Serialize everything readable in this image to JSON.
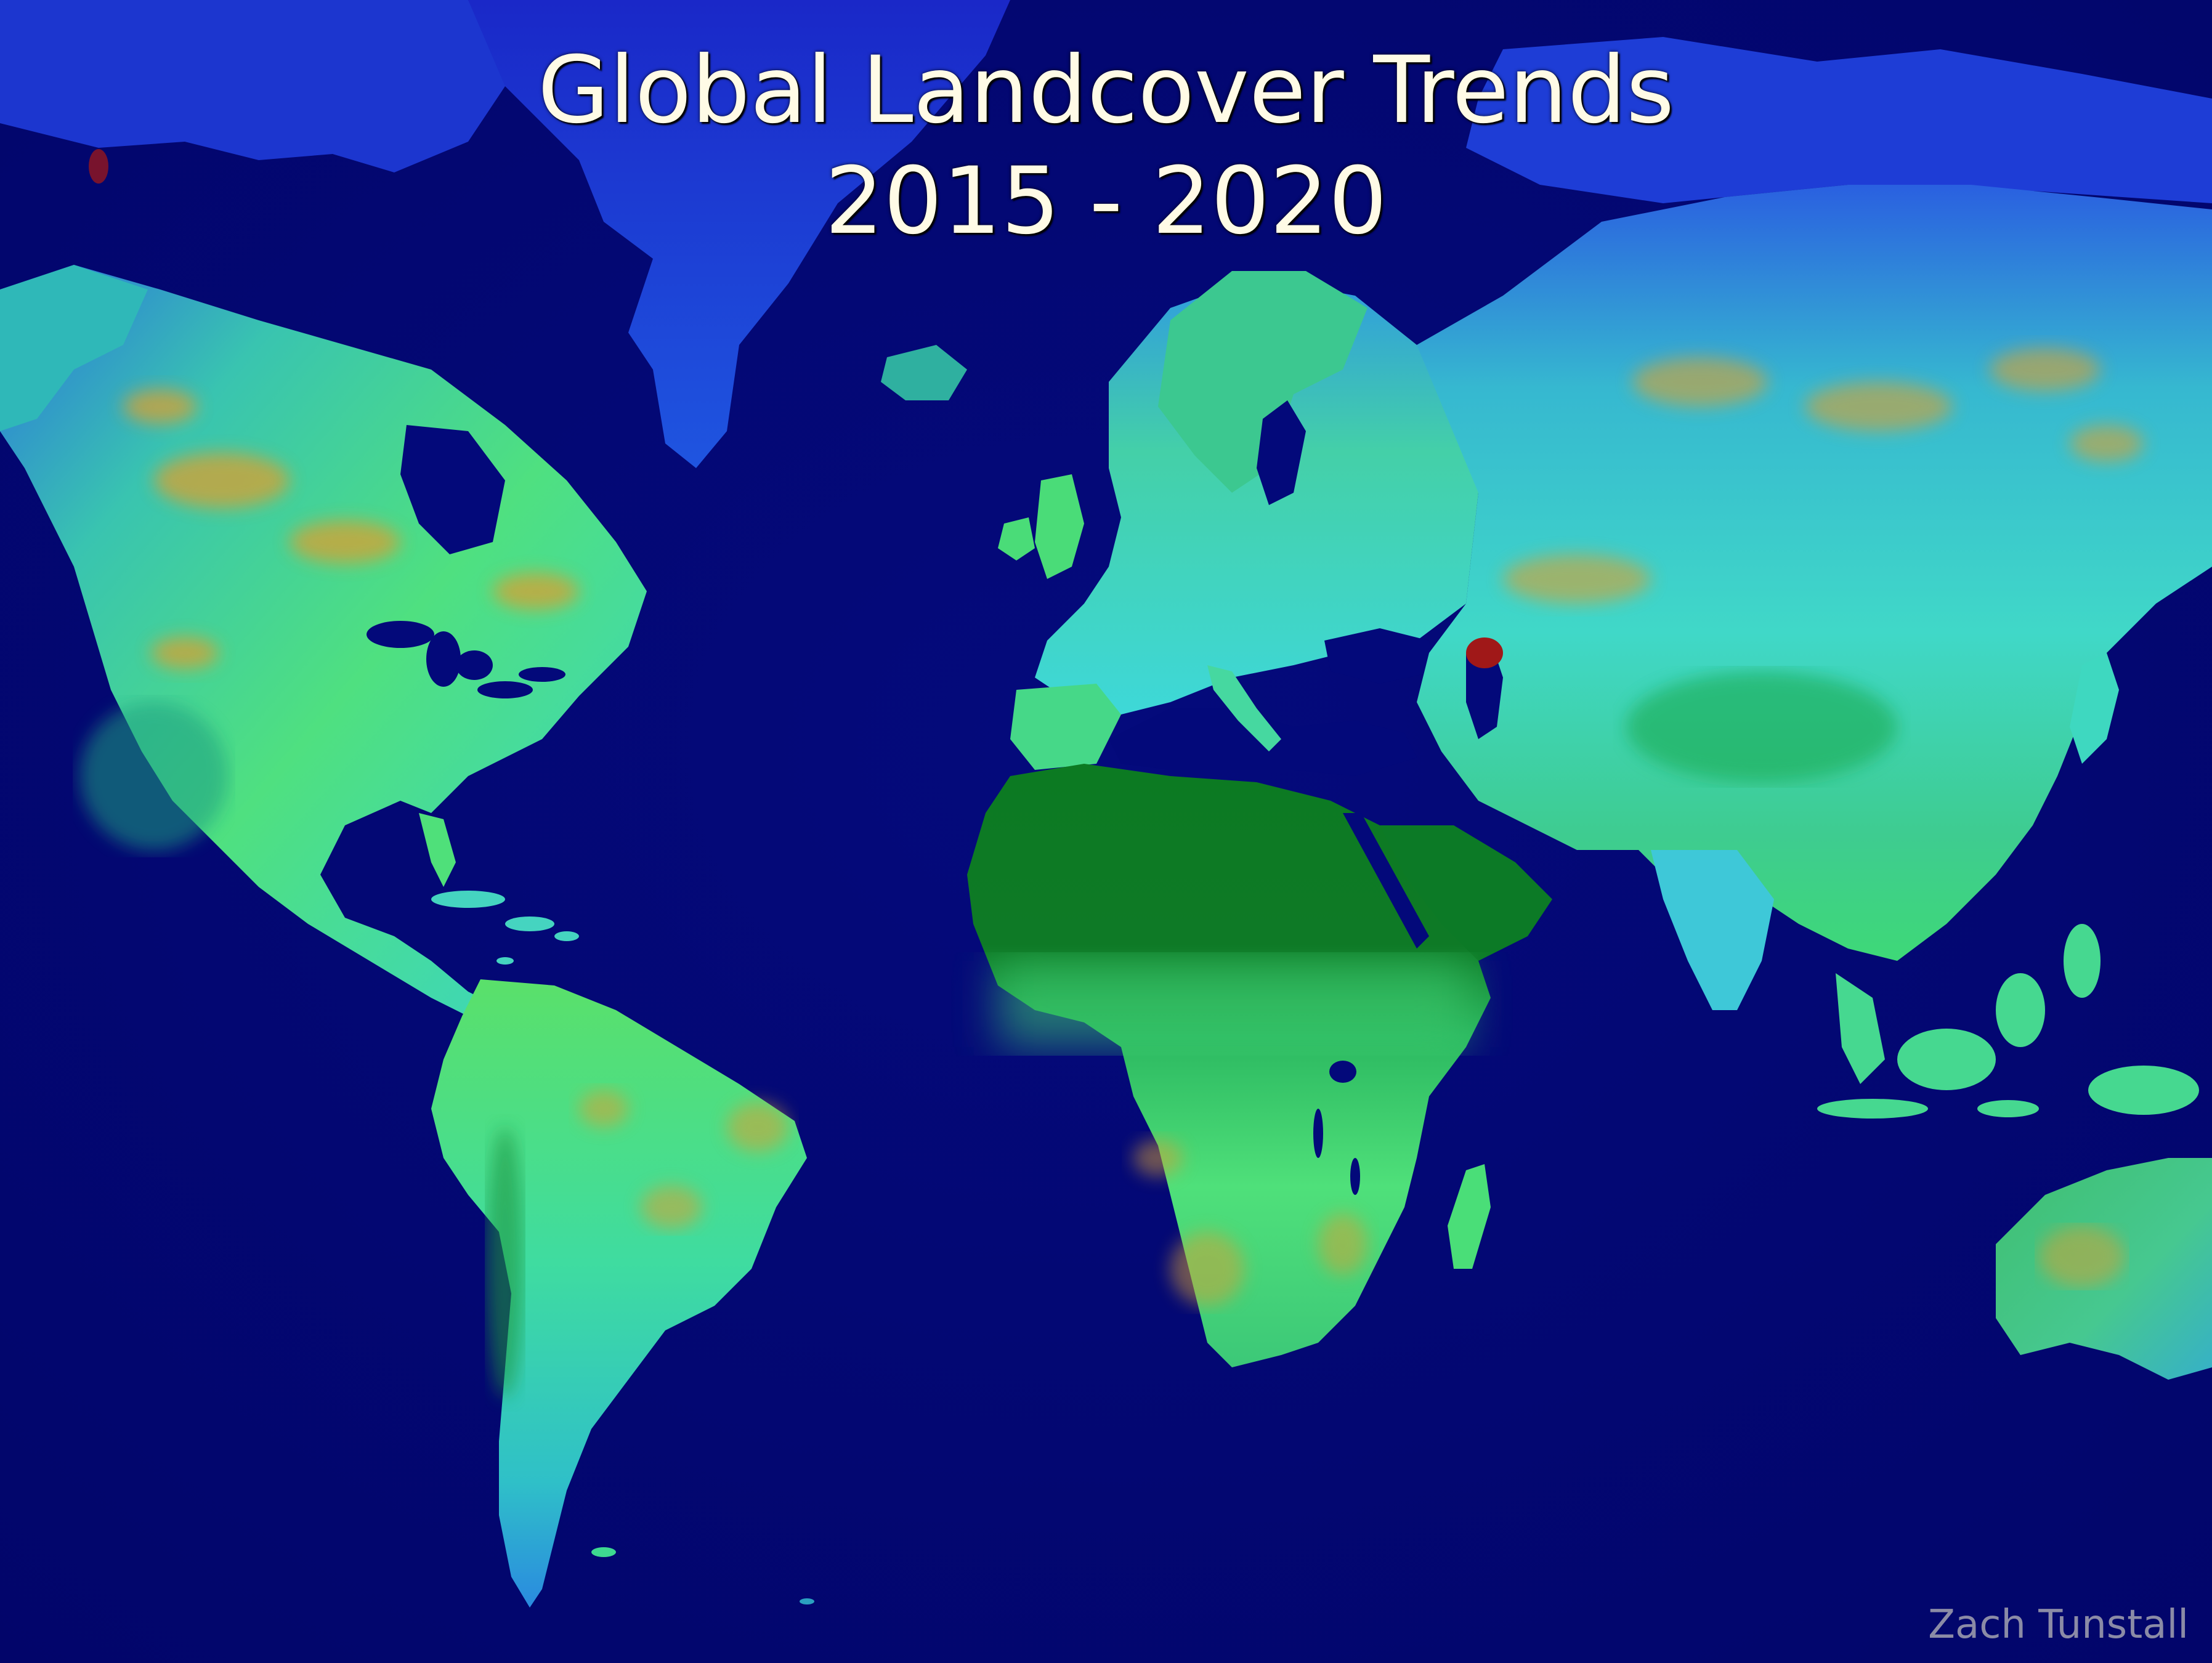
{
  "map": {
    "title_line_1": "Global Landcover Trends",
    "title_line_2": "2015 - 2020",
    "credit": "Zach Tunstall"
  },
  "colors": {
    "ocean": "#030875",
    "ice": "#1a2fd6",
    "tundra": "#2d7fe0",
    "steppe": "#2ecbd8",
    "vegetation": "#3ee07a",
    "forest": "#12a84a",
    "desert": "#0a7a1c",
    "change_orange": "#d9a030",
    "change_red": "#a01818",
    "text": "#fffbe6",
    "credit_text": "#8b8ba6"
  },
  "regions": [
    "greenland",
    "north-america",
    "south-america",
    "europe",
    "africa",
    "asia",
    "australia",
    "madagascar",
    "iceland",
    "british-isles",
    "japan",
    "indonesia",
    "caribbean",
    "antarctic-islands"
  ]
}
